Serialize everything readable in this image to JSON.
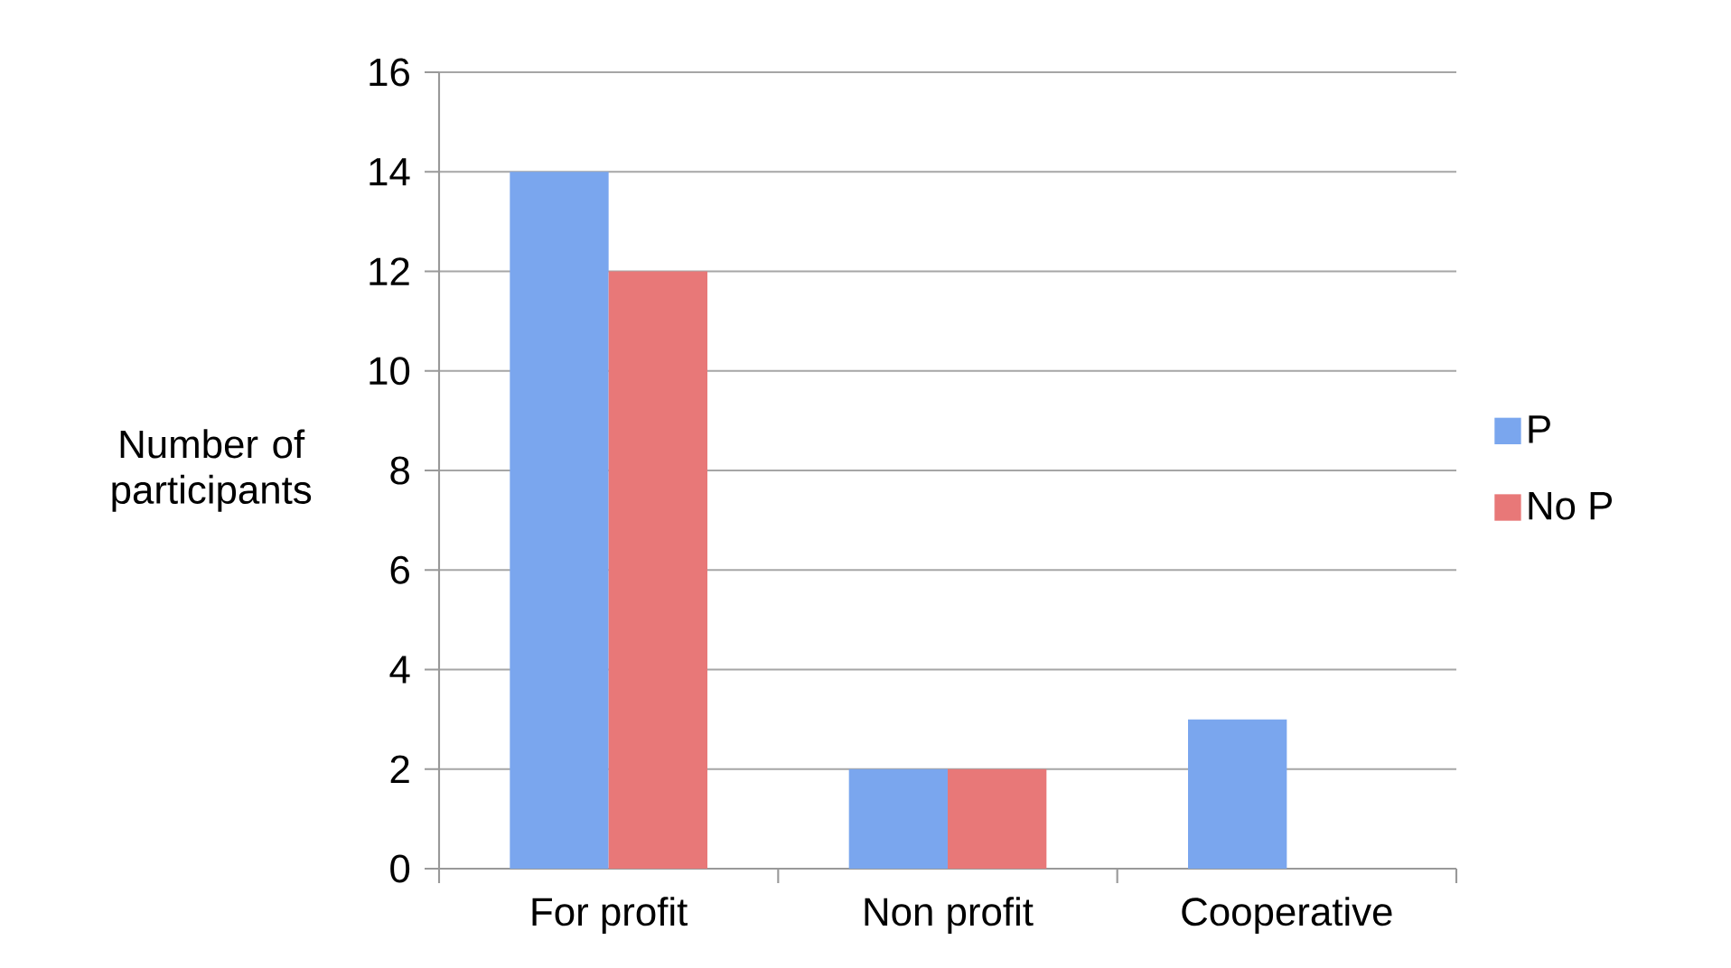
{
  "chart_data": {
    "type": "bar",
    "ylabel": "Number of participants",
    "categories": [
      "For profit",
      "Non profit",
      "Cooperative"
    ],
    "series": [
      {
        "name": "P",
        "color": "#7aa6ee",
        "values": [
          14,
          2,
          3
        ]
      },
      {
        "name": "No P",
        "color": "#e87878",
        "values": [
          12,
          2,
          0
        ]
      }
    ],
    "ylim": [
      0,
      16
    ],
    "yticks": [
      0,
      2,
      4,
      6,
      8,
      10,
      12,
      14,
      16
    ],
    "grid": "y",
    "legend": "right"
  }
}
